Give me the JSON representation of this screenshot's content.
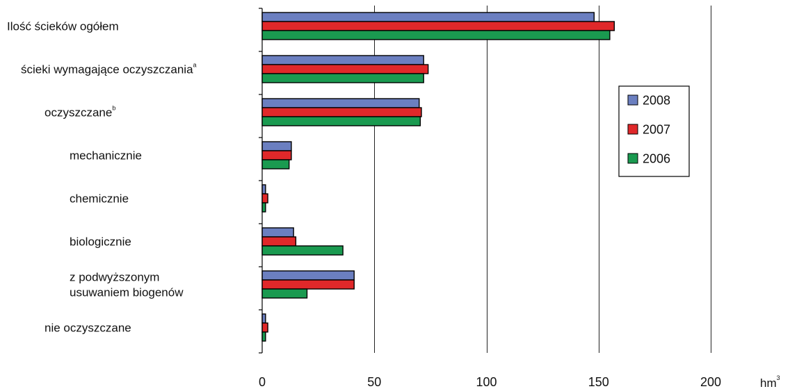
{
  "chart_data": {
    "type": "bar",
    "orientation": "horizontal",
    "categories": [
      {
        "lines": [
          "Ilość ścieków ogółem"
        ],
        "sup": "",
        "indent": 0
      },
      {
        "lines": [
          "ścieki wymagające oczyszczania"
        ],
        "sup": "a",
        "indent": 1
      },
      {
        "lines": [
          "oczyszczane"
        ],
        "sup": "b",
        "indent": 2
      },
      {
        "lines": [
          "mechanicznie"
        ],
        "sup": "",
        "indent": 3
      },
      {
        "lines": [
          "chemicznie"
        ],
        "sup": "",
        "indent": 3
      },
      {
        "lines": [
          "biologicznie"
        ],
        "sup": "",
        "indent": 3
      },
      {
        "lines": [
          "z podwyższonym",
          "usuwaniem biogenów"
        ],
        "sup": "",
        "indent": 3
      },
      {
        "lines": [
          "nie oczyszczane"
        ],
        "sup": "",
        "indent": 2
      }
    ],
    "series": [
      {
        "name": "2008",
        "color": "#6b7fc0",
        "values": [
          148,
          72,
          70,
          13,
          1.5,
          14,
          41,
          1.5
        ]
      },
      {
        "name": "2007",
        "color": "#e0282a",
        "values": [
          157,
          74,
          71,
          13,
          2.5,
          15,
          41,
          2.5
        ]
      },
      {
        "name": "2006",
        "color": "#1a9a50",
        "values": [
          155,
          72,
          70.5,
          12,
          1.5,
          36,
          20,
          1.5
        ]
      }
    ],
    "xlim": [
      0,
      200
    ],
    "xticks": [
      0,
      50,
      100,
      150,
      200
    ],
    "xticklabels": [
      "0",
      "50",
      "100",
      "150",
      "200"
    ],
    "unit": "hm",
    "unit_sup": "3",
    "grid": "vertical",
    "legend_position": "right"
  }
}
